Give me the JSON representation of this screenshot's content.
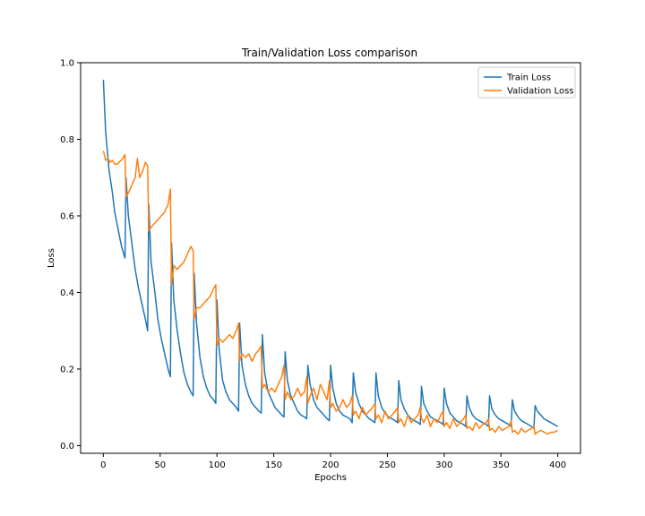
{
  "chart_data": {
    "type": "line",
    "title": "Train/Validation Loss comparison",
    "xlabel": "Epochs",
    "ylabel": "Loss",
    "xlim": [
      -20,
      420
    ],
    "ylim": [
      -0.02,
      1.0
    ],
    "xticks": [
      0,
      50,
      100,
      150,
      200,
      250,
      300,
      350,
      400
    ],
    "yticks": [
      0.0,
      0.2,
      0.4,
      0.6,
      0.8,
      1.0
    ],
    "legend_placement": "top-right",
    "grid": false,
    "series": [
      {
        "name": "Train Loss",
        "color": "#1f77b4",
        "points": [
          [
            0,
            0.955
          ],
          [
            2,
            0.82
          ],
          [
            5,
            0.72
          ],
          [
            8,
            0.66
          ],
          [
            10,
            0.61
          ],
          [
            12,
            0.58
          ],
          [
            14,
            0.55
          ],
          [
            16,
            0.52
          ],
          [
            19,
            0.49
          ],
          [
            20,
            0.7
          ],
          [
            22,
            0.6
          ],
          [
            25,
            0.53
          ],
          [
            28,
            0.46
          ],
          [
            31,
            0.41
          ],
          [
            34,
            0.37
          ],
          [
            37,
            0.33
          ],
          [
            39,
            0.3
          ],
          [
            40,
            0.63
          ],
          [
            42,
            0.48
          ],
          [
            45,
            0.41
          ],
          [
            48,
            0.33
          ],
          [
            51,
            0.28
          ],
          [
            54,
            0.24
          ],
          [
            57,
            0.2
          ],
          [
            59,
            0.18
          ],
          [
            60,
            0.53
          ],
          [
            62,
            0.38
          ],
          [
            65,
            0.3
          ],
          [
            68,
            0.24
          ],
          [
            71,
            0.19
          ],
          [
            74,
            0.16
          ],
          [
            77,
            0.14
          ],
          [
            79,
            0.13
          ],
          [
            80,
            0.45
          ],
          [
            82,
            0.32
          ],
          [
            85,
            0.23
          ],
          [
            88,
            0.18
          ],
          [
            91,
            0.15
          ],
          [
            94,
            0.13
          ],
          [
            97,
            0.12
          ],
          [
            99,
            0.11
          ],
          [
            100,
            0.38
          ],
          [
            102,
            0.25
          ],
          [
            105,
            0.17
          ],
          [
            108,
            0.14
          ],
          [
            111,
            0.12
          ],
          [
            114,
            0.11
          ],
          [
            117,
            0.1
          ],
          [
            119,
            0.09
          ],
          [
            120,
            0.32
          ],
          [
            122,
            0.21
          ],
          [
            125,
            0.16
          ],
          [
            128,
            0.13
          ],
          [
            131,
            0.11
          ],
          [
            134,
            0.1
          ],
          [
            137,
            0.09
          ],
          [
            139,
            0.085
          ],
          [
            140,
            0.29
          ],
          [
            142,
            0.19
          ],
          [
            145,
            0.14
          ],
          [
            148,
            0.12
          ],
          [
            151,
            0.1
          ],
          [
            154,
            0.09
          ],
          [
            157,
            0.08
          ],
          [
            159,
            0.075
          ],
          [
            160,
            0.245
          ],
          [
            162,
            0.17
          ],
          [
            165,
            0.13
          ],
          [
            168,
            0.11
          ],
          [
            171,
            0.09
          ],
          [
            174,
            0.08
          ],
          [
            177,
            0.075
          ],
          [
            179,
            0.07
          ],
          [
            180,
            0.21
          ],
          [
            182,
            0.16
          ],
          [
            185,
            0.12
          ],
          [
            188,
            0.1
          ],
          [
            191,
            0.09
          ],
          [
            194,
            0.08
          ],
          [
            197,
            0.07
          ],
          [
            199,
            0.065
          ],
          [
            200,
            0.21
          ],
          [
            202,
            0.15
          ],
          [
            205,
            0.11
          ],
          [
            208,
            0.09
          ],
          [
            211,
            0.08
          ],
          [
            214,
            0.075
          ],
          [
            217,
            0.07
          ],
          [
            219,
            0.06
          ],
          [
            220,
            0.19
          ],
          [
            222,
            0.14
          ],
          [
            225,
            0.11
          ],
          [
            228,
            0.09
          ],
          [
            231,
            0.08
          ],
          [
            234,
            0.07
          ],
          [
            237,
            0.065
          ],
          [
            239,
            0.06
          ],
          [
            240,
            0.19
          ],
          [
            242,
            0.13
          ],
          [
            245,
            0.1
          ],
          [
            248,
            0.085
          ],
          [
            251,
            0.075
          ],
          [
            254,
            0.07
          ],
          [
            257,
            0.065
          ],
          [
            259,
            0.06
          ],
          [
            260,
            0.17
          ],
          [
            262,
            0.12
          ],
          [
            265,
            0.095
          ],
          [
            268,
            0.08
          ],
          [
            271,
            0.07
          ],
          [
            274,
            0.065
          ],
          [
            277,
            0.06
          ],
          [
            279,
            0.055
          ],
          [
            280,
            0.155
          ],
          [
            282,
            0.11
          ],
          [
            285,
            0.09
          ],
          [
            288,
            0.075
          ],
          [
            291,
            0.07
          ],
          [
            294,
            0.065
          ],
          [
            297,
            0.06
          ],
          [
            299,
            0.055
          ],
          [
            300,
            0.15
          ],
          [
            302,
            0.11
          ],
          [
            305,
            0.085
          ],
          [
            308,
            0.075
          ],
          [
            311,
            0.065
          ],
          [
            314,
            0.06
          ],
          [
            317,
            0.055
          ],
          [
            319,
            0.05
          ],
          [
            320,
            0.13
          ],
          [
            322,
            0.1
          ],
          [
            325,
            0.08
          ],
          [
            328,
            0.07
          ],
          [
            331,
            0.065
          ],
          [
            334,
            0.06
          ],
          [
            337,
            0.055
          ],
          [
            339,
            0.05
          ],
          [
            340,
            0.13
          ],
          [
            342,
            0.095
          ],
          [
            345,
            0.08
          ],
          [
            348,
            0.07
          ],
          [
            351,
            0.065
          ],
          [
            354,
            0.06
          ],
          [
            357,
            0.055
          ],
          [
            359,
            0.05
          ],
          [
            360,
            0.12
          ],
          [
            362,
            0.09
          ],
          [
            365,
            0.075
          ],
          [
            368,
            0.065
          ],
          [
            371,
            0.06
          ],
          [
            374,
            0.055
          ],
          [
            377,
            0.05
          ],
          [
            379,
            0.045
          ],
          [
            380,
            0.105
          ],
          [
            382,
            0.09
          ],
          [
            385,
            0.08
          ],
          [
            388,
            0.07
          ],
          [
            391,
            0.065
          ],
          [
            394,
            0.06
          ],
          [
            397,
            0.055
          ],
          [
            400,
            0.05
          ]
        ]
      },
      {
        "name": "Validation Loss",
        "color": "#ff7f0e",
        "points": [
          [
            0,
            0.77
          ],
          [
            2,
            0.745
          ],
          [
            4,
            0.75
          ],
          [
            6,
            0.74
          ],
          [
            8,
            0.745
          ],
          [
            10,
            0.735
          ],
          [
            12,
            0.735
          ],
          [
            14,
            0.74
          ],
          [
            17,
            0.75
          ],
          [
            19,
            0.76
          ],
          [
            20,
            0.65
          ],
          [
            22,
            0.66
          ],
          [
            25,
            0.68
          ],
          [
            28,
            0.7
          ],
          [
            30,
            0.75
          ],
          [
            32,
            0.7
          ],
          [
            35,
            0.72
          ],
          [
            37,
            0.74
          ],
          [
            39,
            0.73
          ],
          [
            40,
            0.56
          ],
          [
            42,
            0.57
          ],
          [
            45,
            0.58
          ],
          [
            48,
            0.59
          ],
          [
            51,
            0.6
          ],
          [
            54,
            0.61
          ],
          [
            57,
            0.63
          ],
          [
            59,
            0.67
          ],
          [
            60,
            0.42
          ],
          [
            62,
            0.47
          ],
          [
            65,
            0.46
          ],
          [
            68,
            0.47
          ],
          [
            71,
            0.48
          ],
          [
            74,
            0.5
          ],
          [
            77,
            0.52
          ],
          [
            79,
            0.51
          ],
          [
            80,
            0.33
          ],
          [
            82,
            0.36
          ],
          [
            85,
            0.36
          ],
          [
            88,
            0.37
          ],
          [
            91,
            0.38
          ],
          [
            94,
            0.39
          ],
          [
            97,
            0.41
          ],
          [
            99,
            0.42
          ],
          [
            100,
            0.26
          ],
          [
            102,
            0.28
          ],
          [
            105,
            0.27
          ],
          [
            108,
            0.28
          ],
          [
            111,
            0.29
          ],
          [
            114,
            0.28
          ],
          [
            117,
            0.3
          ],
          [
            119,
            0.32
          ],
          [
            120,
            0.22
          ],
          [
            122,
            0.24
          ],
          [
            125,
            0.23
          ],
          [
            128,
            0.24
          ],
          [
            131,
            0.22
          ],
          [
            134,
            0.24
          ],
          [
            137,
            0.25
          ],
          [
            139,
            0.26
          ],
          [
            140,
            0.15
          ],
          [
            142,
            0.16
          ],
          [
            145,
            0.14
          ],
          [
            148,
            0.15
          ],
          [
            151,
            0.14
          ],
          [
            154,
            0.16
          ],
          [
            157,
            0.18
          ],
          [
            159,
            0.21
          ],
          [
            160,
            0.12
          ],
          [
            162,
            0.14
          ],
          [
            165,
            0.12
          ],
          [
            168,
            0.13
          ],
          [
            171,
            0.15
          ],
          [
            174,
            0.13
          ],
          [
            177,
            0.14
          ],
          [
            179,
            0.18
          ],
          [
            180,
            0.11
          ],
          [
            182,
            0.13
          ],
          [
            185,
            0.15
          ],
          [
            188,
            0.12
          ],
          [
            191,
            0.16
          ],
          [
            194,
            0.14
          ],
          [
            197,
            0.12
          ],
          [
            199,
            0.17
          ],
          [
            200,
            0.1
          ],
          [
            202,
            0.11
          ],
          [
            205,
            0.09
          ],
          [
            208,
            0.1
          ],
          [
            211,
            0.12
          ],
          [
            214,
            0.1
          ],
          [
            217,
            0.11
          ],
          [
            219,
            0.13
          ],
          [
            220,
            0.08
          ],
          [
            222,
            0.09
          ],
          [
            225,
            0.07
          ],
          [
            228,
            0.1
          ],
          [
            231,
            0.08
          ],
          [
            234,
            0.09
          ],
          [
            237,
            0.1
          ],
          [
            239,
            0.11
          ],
          [
            240,
            0.07
          ],
          [
            242,
            0.08
          ],
          [
            245,
            0.06
          ],
          [
            248,
            0.09
          ],
          [
            251,
            0.07
          ],
          [
            254,
            0.08
          ],
          [
            257,
            0.09
          ],
          [
            259,
            0.1
          ],
          [
            260,
            0.06
          ],
          [
            262,
            0.07
          ],
          [
            265,
            0.05
          ],
          [
            268,
            0.08
          ],
          [
            271,
            0.06
          ],
          [
            274,
            0.07
          ],
          [
            277,
            0.08
          ],
          [
            279,
            0.1
          ],
          [
            280,
            0.07
          ],
          [
            282,
            0.06
          ],
          [
            285,
            0.08
          ],
          [
            288,
            0.05
          ],
          [
            291,
            0.07
          ],
          [
            294,
            0.06
          ],
          [
            297,
            0.08
          ],
          [
            299,
            0.09
          ],
          [
            300,
            0.05
          ],
          [
            302,
            0.06
          ],
          [
            305,
            0.045
          ],
          [
            308,
            0.07
          ],
          [
            311,
            0.05
          ],
          [
            314,
            0.06
          ],
          [
            317,
            0.07
          ],
          [
            319,
            0.08
          ],
          [
            320,
            0.045
          ],
          [
            322,
            0.05
          ],
          [
            325,
            0.04
          ],
          [
            328,
            0.06
          ],
          [
            331,
            0.045
          ],
          [
            334,
            0.055
          ],
          [
            337,
            0.06
          ],
          [
            339,
            0.07
          ],
          [
            340,
            0.04
          ],
          [
            342,
            0.045
          ],
          [
            345,
            0.035
          ],
          [
            348,
            0.05
          ],
          [
            351,
            0.04
          ],
          [
            354,
            0.045
          ],
          [
            357,
            0.05
          ],
          [
            359,
            0.065
          ],
          [
            360,
            0.035
          ],
          [
            362,
            0.04
          ],
          [
            365,
            0.03
          ],
          [
            368,
            0.045
          ],
          [
            371,
            0.035
          ],
          [
            374,
            0.04
          ],
          [
            377,
            0.045
          ],
          [
            379,
            0.05
          ],
          [
            380,
            0.03
          ],
          [
            382,
            0.035
          ],
          [
            385,
            0.04
          ],
          [
            388,
            0.035
          ],
          [
            391,
            0.03
          ],
          [
            394,
            0.035
          ],
          [
            397,
            0.035
          ],
          [
            400,
            0.04
          ]
        ]
      }
    ]
  }
}
